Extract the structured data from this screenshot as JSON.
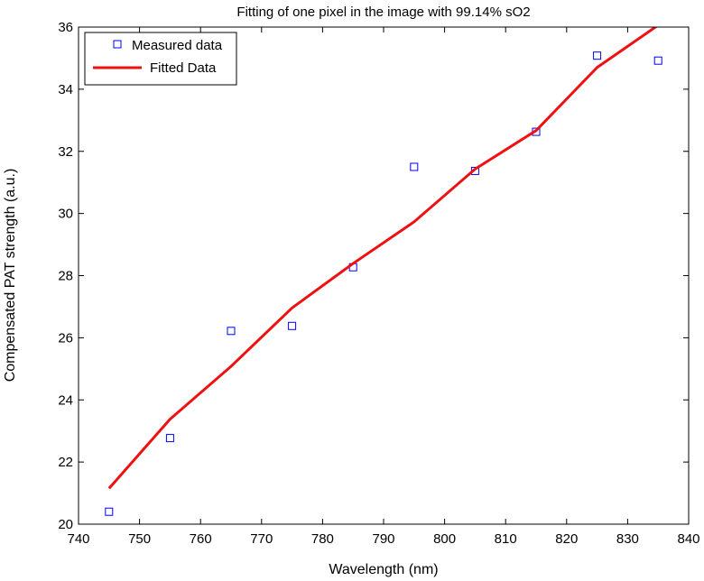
{
  "chart_data": {
    "type": "line",
    "title": "Fitting of one pixel in the image with 99.14% sO2",
    "xlabel": "Wavelength (nm)",
    "ylabel": "Compensated PAT strength (a.u.)",
    "xlim": [
      740,
      840
    ],
    "ylim": [
      20,
      36
    ],
    "xticks": [
      740,
      750,
      760,
      770,
      780,
      790,
      800,
      810,
      820,
      830,
      840
    ],
    "yticks": [
      20,
      22,
      24,
      26,
      28,
      30,
      32,
      34,
      36
    ],
    "grid": false,
    "legend_position": "top-left",
    "series": [
      {
        "name": "Measured data",
        "kind": "scatter",
        "marker": "square",
        "color": "#0000ff",
        "x": [
          745,
          755,
          765,
          775,
          785,
          795,
          805,
          815,
          825,
          835
        ],
        "y": [
          20.4,
          22.77,
          26.22,
          26.38,
          28.27,
          31.5,
          31.37,
          32.63,
          35.08,
          34.92
        ]
      },
      {
        "name": "Fitted Data",
        "kind": "line",
        "color": "#ee1111",
        "x": [
          745,
          755,
          765,
          775,
          785,
          795,
          805,
          815,
          825,
          835
        ],
        "y": [
          21.15,
          23.38,
          25.08,
          26.96,
          28.39,
          29.73,
          31.43,
          32.67,
          34.7,
          36.06
        ]
      }
    ]
  }
}
